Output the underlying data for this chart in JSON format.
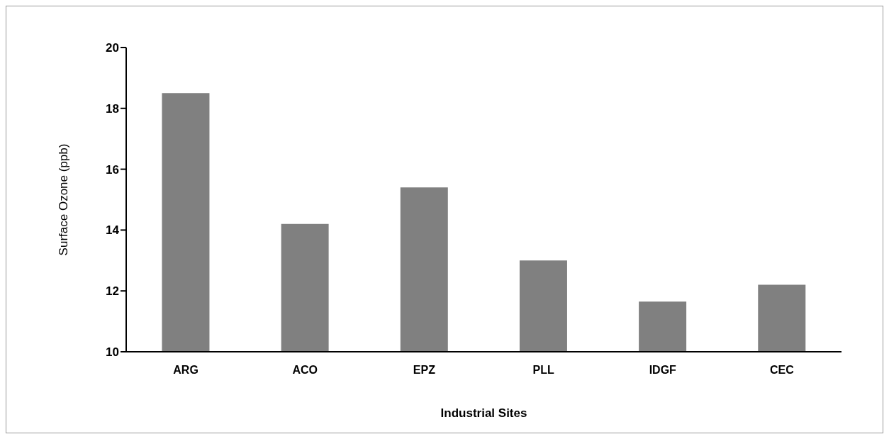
{
  "chart_data": {
    "type": "bar",
    "xlabel": "Industrial Sites",
    "ylabel": "Surface Ozone (ppb)",
    "categories": [
      "ARG",
      "ACO",
      "EPZ",
      "PLL",
      "IDGF",
      "CEC"
    ],
    "values": [
      18.5,
      14.2,
      15.4,
      13.0,
      11.65,
      12.2
    ],
    "color": "#808080",
    "ylim": [
      10,
      20
    ],
    "yticks": [
      10,
      12,
      14,
      16,
      18,
      20
    ],
    "grid": false
  }
}
